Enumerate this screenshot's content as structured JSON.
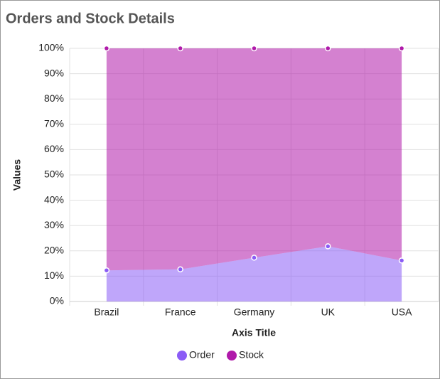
{
  "chart_data": {
    "type": "stacked_area_100",
    "title": "Orders and Stock Details",
    "x_label": "Axis Title",
    "y_label": "Values",
    "categories": [
      "Brazil",
      "France",
      "Germany",
      "UK",
      "USA"
    ],
    "series": [
      {
        "name": "Order",
        "color": "#8b5cf6",
        "values": [
          12.3,
          12.7,
          17.3,
          21.8,
          16.2
        ]
      },
      {
        "name": "Stock",
        "color": "#b01aaa",
        "values": [
          87.7,
          87.3,
          82.7,
          78.2,
          83.8
        ]
      }
    ],
    "ylim": [
      0,
      100
    ],
    "yticks": [
      {
        "value": 0,
        "label": "0%"
      },
      {
        "value": 10,
        "label": "10%"
      },
      {
        "value": 20,
        "label": "20%"
      },
      {
        "value": 30,
        "label": "30%"
      },
      {
        "value": 40,
        "label": "40%"
      },
      {
        "value": 50,
        "label": "50%"
      },
      {
        "value": 60,
        "label": "60%"
      },
      {
        "value": 70,
        "label": "70%"
      },
      {
        "value": 80,
        "label": "80%"
      },
      {
        "value": 90,
        "label": "90%"
      },
      {
        "value": 100,
        "label": "100%"
      }
    ],
    "grid": true,
    "legend": "bottom"
  }
}
